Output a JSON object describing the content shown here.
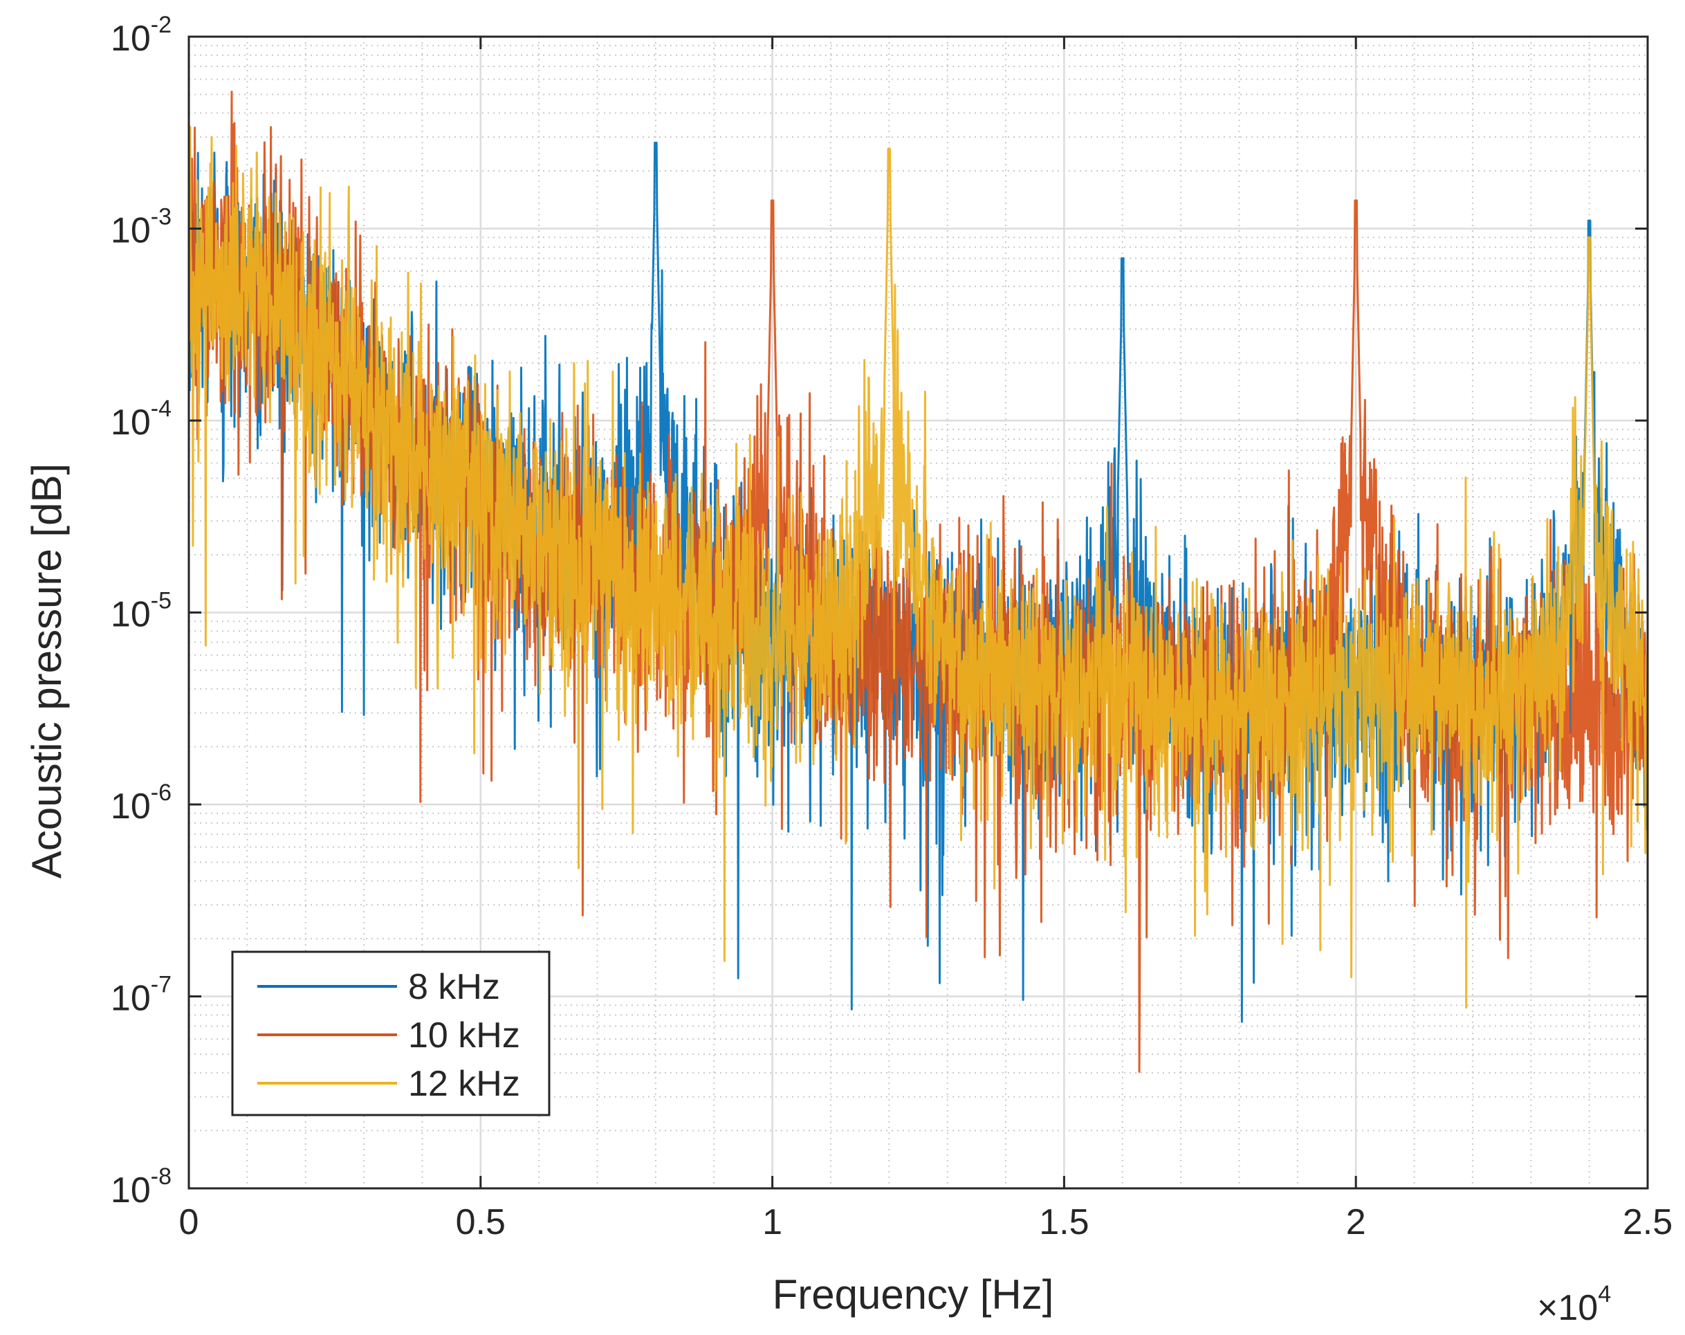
{
  "chart_data": {
    "type": "line",
    "xlabel": "Frequency [Hz]",
    "ylabel": "Acoustic pressure [dB]",
    "x_multiplier_label": {
      "prefix": "×10",
      "exponent": "4"
    },
    "xlim": [
      0,
      25000
    ],
    "ylim": [
      1e-08,
      0.01
    ],
    "yscale": "log",
    "grid": true,
    "minor_grid": true,
    "x_ticks": [
      {
        "value": 0,
        "label": "0"
      },
      {
        "value": 5000,
        "label": "0.5"
      },
      {
        "value": 10000,
        "label": "1"
      },
      {
        "value": 15000,
        "label": "1.5"
      },
      {
        "value": 20000,
        "label": "2"
      },
      {
        "value": 25000,
        "label": "2.5"
      }
    ],
    "y_ticks": [
      {
        "value": 0.01,
        "base": "10",
        "exp": "-2"
      },
      {
        "value": 0.001,
        "base": "10",
        "exp": "-3"
      },
      {
        "value": 0.0001,
        "base": "10",
        "exp": "-4"
      },
      {
        "value": 1e-05,
        "base": "10",
        "exp": "-5"
      },
      {
        "value": 1e-06,
        "base": "10",
        "exp": "-6"
      },
      {
        "value": 1e-07,
        "base": "10",
        "exp": "-7"
      },
      {
        "value": 1e-08,
        "base": "10",
        "exp": "-8"
      }
    ],
    "legend_position": "lower-left",
    "series": [
      {
        "name": "8 kHz",
        "color": "#0072BD",
        "fundamental_hz": 8000,
        "peaks": [
          {
            "freq": 8000,
            "amp": 0.0028
          },
          {
            "freq": 16000,
            "amp": 0.0007
          },
          {
            "freq": 24000,
            "amp": 0.0011
          }
        ]
      },
      {
        "name": "10 kHz",
        "color": "#D95319",
        "fundamental_hz": 10000,
        "peaks": [
          {
            "freq": 10000,
            "amp": 0.0014
          },
          {
            "freq": 20000,
            "amp": 0.0014
          }
        ]
      },
      {
        "name": "12 kHz",
        "color": "#EDB120",
        "fundamental_hz": 12000,
        "peaks": [
          {
            "freq": 12000,
            "amp": 0.0026
          },
          {
            "freq": 24000,
            "amp": 0.0009
          }
        ]
      }
    ],
    "noise_floor": [
      {
        "freq": 0,
        "amp": 0.0006
      },
      {
        "freq": 1500,
        "amp": 0.0004
      },
      {
        "freq": 2500,
        "amp": 0.0002
      },
      {
        "freq": 4000,
        "amp": 6e-05
      },
      {
        "freq": 6000,
        "amp": 2.5e-05
      },
      {
        "freq": 8000,
        "amp": 1.3e-05
      },
      {
        "freq": 10000,
        "amp": 8e-06
      },
      {
        "freq": 12000,
        "amp": 6e-06
      },
      {
        "freq": 15000,
        "amp": 4e-06
      },
      {
        "freq": 18000,
        "amp": 3.2e-06
      },
      {
        "freq": 20000,
        "amp": 4e-06
      },
      {
        "freq": 22000,
        "amp": 3.5e-06
      },
      {
        "freq": 25000,
        "amp": 3e-06
      }
    ]
  }
}
